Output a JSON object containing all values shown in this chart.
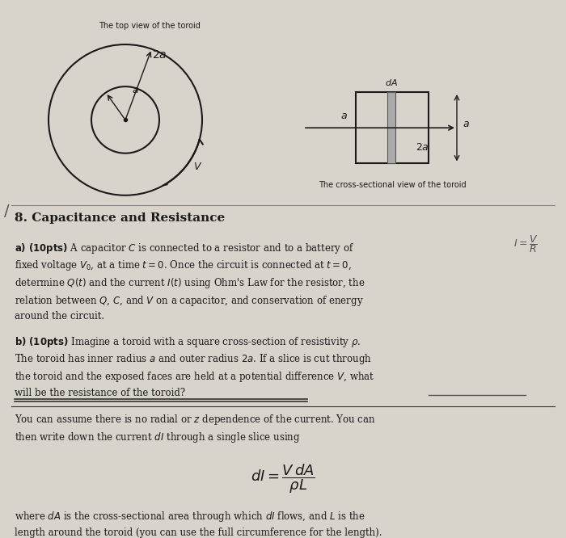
{
  "bg_color": "#d8d4cc",
  "text_color": "#1a1a1a",
  "title": "The top view of the toroid",
  "cross_section_title": "The cross-sectional view of the toroid",
  "section_header": "8. Capacitance and Resistance",
  "part_a": "a) (10pts) A capacitor $C$ is connected to a resistor and to a battery of\nfixed voltage $V_0$, at a time $t = 0$. Once the circuit is connected at $t = 0$,\ndetermine $Q(t)$ and the current $I(t)$ using Ohm’s Law for the resistor, the\nrelation between $Q$, $C$, and $V$ on a capacitor, and conservation of energy\naround the circuit.",
  "part_b": "b) (10pts) Imagine a toroid with a square cross-section of resistivity $\\rho$.\nThe toroid has inner radius $a$ and outer radius $2a$. If a slice is cut through\nthe toroid and the exposed faces are held at a potential difference $V$, what\nwill be the resistance of the toroid?",
  "hint_text": "You can assume there is no radial or $z$ dependence of the current. You can\nthen write down the current $dI$ through a single slice using",
  "formula": "$dI = \\dfrac{V\\,dA}{\\rho L}$",
  "footnote": "where $dA$ is the cross-sectional area through which $dI$ flows, and $L$ is the\nlength around the toroid (you can use the full circumference for the length).",
  "handwritten_note": "$I = \\dfrac{V}{R}$"
}
